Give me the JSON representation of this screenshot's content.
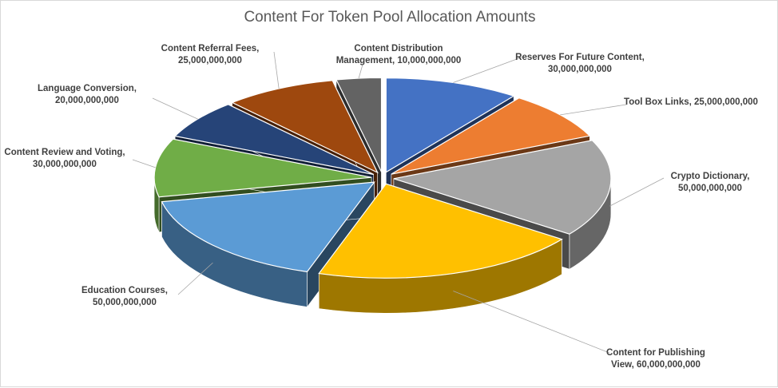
{
  "chart_data": {
    "type": "pie",
    "title": "Content For Token Pool Allocation Amounts",
    "slices": [
      {
        "label_lines": [
          "Reserves For Future Content,",
          "30,000,000,000"
        ],
        "value": 30000000000,
        "color": "#4472c4"
      },
      {
        "label_lines": [
          "Tool Box Links,  25,000,000,000"
        ],
        "value": 25000000000,
        "color": "#ed7d31"
      },
      {
        "label_lines": [
          "Crypto Dictionary,",
          "50,000,000,000"
        ],
        "value": 50000000000,
        "color": "#a5a5a5"
      },
      {
        "label_lines": [
          "Content for Publishing",
          "View,  60,000,000,000"
        ],
        "value": 60000000000,
        "color": "#ffc000"
      },
      {
        "label_lines": [
          "Education Courses,",
          "50,000,000,000"
        ],
        "value": 50000000000,
        "color": "#5b9bd5"
      },
      {
        "label_lines": [
          "Content Review and Voting,",
          "30,000,000,000"
        ],
        "value": 30000000000,
        "color": "#70ad47"
      },
      {
        "label_lines": [
          "Language Conversion,",
          "20,000,000,000"
        ],
        "value": 20000000000,
        "color": "#264478"
      },
      {
        "label_lines": [
          "Content Referral Fees,",
          "25,000,000,000"
        ],
        "value": 25000000000,
        "color": "#9e480e"
      },
      {
        "label_lines": [
          "Content Distribution",
          "Management,  10,000,000,000"
        ],
        "value": 10000000000,
        "color": "#636363"
      }
    ]
  }
}
